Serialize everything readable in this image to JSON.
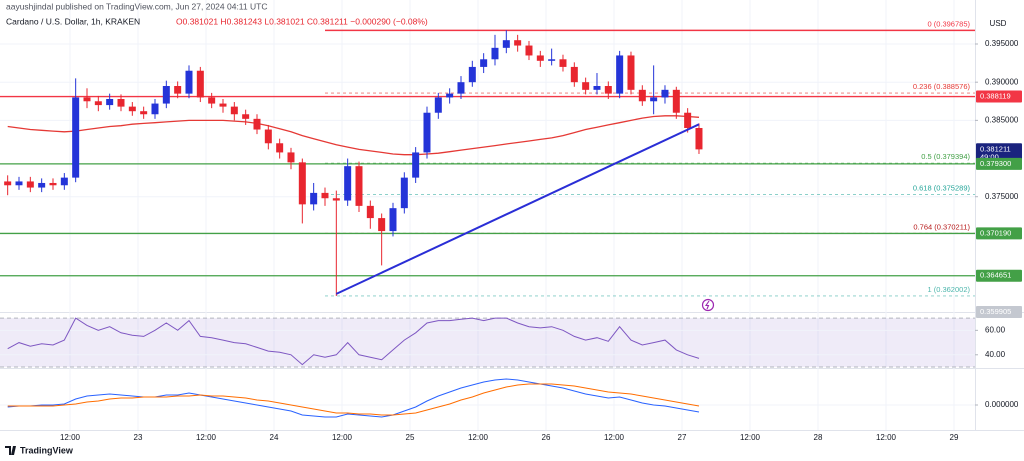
{
  "header": {
    "publisher": "aayushjindal published on TradingView.com, Jun 27, 2024 04:11 UTC",
    "symbol": "Cardano / U.S. Dollar, 1h, KRAKEN",
    "ohlc": "O0.381021 H0.381243 L0.381021 C0.381211 −0.000290 (−0.08%)"
  },
  "footer": {
    "brand": "TradingView"
  },
  "chart_data": [
    {
      "type": "candlestick",
      "currency": "USD",
      "categories": [
        null,
        null,
        null,
        null,
        null,
        null,
        "12:00",
        null,
        null,
        null,
        null,
        null,
        "23",
        null,
        null,
        null,
        null,
        null,
        "12:00",
        null,
        null,
        null,
        null,
        null,
        "24",
        null,
        null,
        null,
        null,
        null,
        "12:00",
        null,
        null,
        null,
        null,
        null,
        "25",
        null,
        null,
        null,
        null,
        null,
        "12:00",
        null,
        null,
        null,
        null,
        null,
        "26",
        null,
        null,
        null,
        null,
        null,
        "12:00",
        null,
        null,
        null,
        null,
        null,
        "27",
        null,
        null,
        null,
        null,
        null,
        "12:00",
        null,
        null,
        null,
        null,
        null,
        "28",
        null,
        null,
        null,
        null,
        null,
        "12:00",
        null,
        null,
        null,
        null,
        null,
        "29",
        null
      ],
      "open": [
        0.377,
        0.3765,
        0.377,
        0.3762,
        0.3768,
        0.3765,
        0.3775,
        0.388,
        0.3875,
        0.387,
        0.3878,
        0.3868,
        0.3862,
        0.3858,
        0.3872,
        0.3895,
        0.3885,
        0.3915,
        0.388,
        0.3872,
        0.3868,
        0.3858,
        0.3852,
        0.3838,
        0.382,
        0.3808,
        0.3795,
        0.374,
        0.3755,
        0.3748,
        0.3745,
        0.379,
        0.3738,
        0.3722,
        0.3705,
        0.3735,
        0.3775,
        0.3808,
        0.386,
        0.388,
        0.3885,
        0.39,
        0.392,
        0.393,
        0.3945,
        0.3955,
        0.3948,
        0.3935,
        0.3928,
        0.393,
        0.392,
        0.39,
        0.389,
        0.3895,
        0.3885,
        0.3935,
        0.389,
        0.3875,
        0.388,
        0.389,
        0.386,
        0.384,
        null,
        null,
        null,
        null,
        null,
        null,
        null,
        null,
        null,
        null,
        null,
        null,
        null,
        null,
        null,
        null,
        null,
        null,
        null,
        null,
        null,
        null,
        null,
        null
      ],
      "high": [
        0.3778,
        0.3776,
        0.3776,
        0.3774,
        0.3774,
        0.3781,
        0.3905,
        0.3892,
        0.3882,
        0.3885,
        0.3884,
        0.3874,
        0.3868,
        0.3878,
        0.3902,
        0.3901,
        0.3922,
        0.392,
        0.3886,
        0.3878,
        0.3874,
        0.3864,
        0.3858,
        0.3844,
        0.3826,
        0.3814,
        0.38,
        0.3768,
        0.3762,
        0.3758,
        0.38,
        0.3796,
        0.3745,
        0.3728,
        0.3742,
        0.3782,
        0.3815,
        0.3868,
        0.3886,
        0.3892,
        0.3908,
        0.3928,
        0.3938,
        0.3962,
        0.3968,
        0.3962,
        0.3954,
        0.3941,
        0.3944,
        0.3936,
        0.3926,
        0.3906,
        0.3912,
        0.3901,
        0.3941,
        0.394,
        0.3896,
        0.3922,
        0.3896,
        0.3894,
        0.3866,
        0.3846,
        null,
        null,
        null,
        null,
        null,
        null,
        null,
        null,
        null,
        null,
        null,
        null,
        null,
        null,
        null,
        null,
        null,
        null,
        null,
        null,
        null,
        null,
        null,
        null
      ],
      "low": [
        0.3752,
        0.3759,
        0.3756,
        0.3756,
        0.3759,
        0.3759,
        0.3769,
        0.3866,
        0.3862,
        0.3864,
        0.3862,
        0.3856,
        0.3852,
        0.3852,
        0.3866,
        0.3879,
        0.3879,
        0.3874,
        0.3866,
        0.386,
        0.385,
        0.3844,
        0.3832,
        0.3812,
        0.38,
        0.3786,
        0.3715,
        0.3732,
        0.3738,
        0.362,
        0.3738,
        0.373,
        0.3708,
        0.366,
        0.3698,
        0.3728,
        0.3768,
        0.38,
        0.3852,
        0.3872,
        0.3878,
        0.3894,
        0.3912,
        0.3922,
        0.3938,
        0.394,
        0.3929,
        0.392,
        0.3922,
        0.3914,
        0.3894,
        0.3884,
        0.3884,
        0.3878,
        0.3879,
        0.3884,
        0.3869,
        0.3858,
        0.3872,
        0.3852,
        0.3834,
        0.3806,
        null,
        null,
        null,
        null,
        null,
        null,
        null,
        null,
        null,
        null,
        null,
        null,
        null,
        null,
        null,
        null,
        null,
        null,
        null,
        null,
        null,
        null,
        null,
        null
      ],
      "close": [
        0.3765,
        0.377,
        0.3762,
        0.3768,
        0.3765,
        0.3775,
        0.388,
        0.3875,
        0.387,
        0.3878,
        0.3868,
        0.3862,
        0.3858,
        0.3872,
        0.3895,
        0.3885,
        0.3915,
        0.388,
        0.3872,
        0.3868,
        0.3858,
        0.3852,
        0.3838,
        0.382,
        0.3808,
        0.3795,
        0.374,
        0.3755,
        0.3748,
        0.3745,
        0.379,
        0.3738,
        0.3722,
        0.3705,
        0.3735,
        0.3775,
        0.3808,
        0.386,
        0.388,
        0.3885,
        0.39,
        0.392,
        0.393,
        0.3945,
        0.3955,
        0.3948,
        0.3935,
        0.3928,
        0.393,
        0.392,
        0.39,
        0.389,
        0.3895,
        0.3885,
        0.3935,
        0.389,
        0.3875,
        0.388,
        0.389,
        0.386,
        0.384,
        0.3812,
        null,
        null,
        null,
        null,
        null,
        null,
        null,
        null,
        null,
        null,
        null,
        null,
        null,
        null,
        null,
        null,
        null,
        null,
        null,
        null,
        null,
        null,
        null,
        null
      ],
      "up_color": "#2434d8",
      "down_color": "#e8262f",
      "ma_color": "#e53935",
      "ma_values": [
        0.3842,
        0.384,
        0.3838,
        0.3837,
        0.3836,
        0.3835,
        0.3836,
        0.3838,
        0.384,
        0.3842,
        0.3843,
        0.3845,
        0.3846,
        0.3847,
        0.3848,
        0.3849,
        0.385,
        0.385,
        0.385,
        0.385,
        0.3849,
        0.3848,
        0.3846,
        0.3843,
        0.3839,
        0.3835,
        0.383,
        0.3826,
        0.3822,
        0.3818,
        0.3815,
        0.3812,
        0.381,
        0.3808,
        0.3806,
        0.3805,
        0.3805,
        0.3806,
        0.3807,
        0.3809,
        0.3811,
        0.3813,
        0.3815,
        0.3817,
        0.3819,
        0.3821,
        0.3823,
        0.3825,
        0.3827,
        0.383,
        0.3834,
        0.3838,
        0.3841,
        0.3844,
        0.3847,
        0.385,
        0.3853,
        0.3855,
        0.3856,
        0.3856,
        0.3855,
        0.3854,
        null,
        null,
        null,
        null,
        null,
        null,
        null,
        null,
        null,
        null,
        null,
        null,
        null,
        null,
        null,
        null,
        null,
        null,
        null,
        null,
        null,
        null,
        null,
        null
      ],
      "ylim": [
        0.3599,
        0.3988
      ],
      "yticks": [
        {
          "value": 0.395,
          "label": "0.395000"
        },
        {
          "value": 0.39,
          "label": "0.390000"
        },
        {
          "value": 0.385,
          "label": "0.385000"
        },
        {
          "value": 0.375,
          "label": "0.375000"
        }
      ],
      "grid": true,
      "price_tags": [
        {
          "value": 0.388119,
          "label": "0.388119",
          "color": "#f23645",
          "line": true
        },
        {
          "value": 0.381211,
          "label": "0.381211",
          "sub": "49:00",
          "color": "#1a237e",
          "line": false
        },
        {
          "value": 0.3793,
          "label": "0.379300",
          "color": "#43a047",
          "line": true
        },
        {
          "value": 0.37019,
          "label": "0.370190",
          "color": "#43a047",
          "line": true
        },
        {
          "value": 0.364651,
          "label": "0.364651",
          "color": "#43a047",
          "line": true
        },
        {
          "value": 0.359905,
          "label": "0.359905",
          "color": "#c4c8d0",
          "line": false
        }
      ],
      "fib_levels": [
        {
          "value": 0.396785,
          "label": "0 (0.396785)",
          "color": "#f23645"
        },
        {
          "value": 0.388576,
          "label": "0.236 (0.388576)",
          "color": "#e53935"
        },
        {
          "value": 0.379394,
          "label": "0.5 (0.379394)",
          "color": "#43a047"
        },
        {
          "value": 0.375289,
          "label": "0.618 (0.375289)",
          "color": "#26a69a"
        },
        {
          "value": 0.370211,
          "label": "0.764 (0.370211)",
          "color": "#b71c1c"
        },
        {
          "value": 0.362002,
          "label": "1 (0.362002)",
          "color": "#4db6ac"
        }
      ],
      "trend_line": {
        "x": [
          29,
          61
        ],
        "y": [
          0.36227,
          0.38448
        ],
        "color": "#2a2ed6"
      }
    },
    {
      "type": "line",
      "color": "#7e57c2",
      "values": [
        45,
        50,
        47,
        49,
        48,
        52,
        70,
        64,
        60,
        63,
        58,
        56,
        55,
        60,
        66,
        60,
        68,
        55,
        54,
        52,
        50,
        49,
        46,
        43,
        42,
        40,
        32,
        40,
        38,
        40,
        50,
        40,
        38,
        36,
        44,
        52,
        58,
        66,
        68,
        68,
        69,
        70,
        68,
        70,
        70,
        66,
        63,
        62,
        63,
        60,
        55,
        52,
        54,
        51,
        63,
        52,
        48,
        50,
        52,
        44,
        40,
        37,
        null,
        null,
        null,
        null,
        null,
        null,
        null,
        null,
        null,
        null,
        null,
        null,
        null,
        null,
        null,
        null,
        null,
        null,
        null,
        null,
        null,
        null,
        null,
        null
      ],
      "ylim": [
        30,
        75
      ],
      "yticks": [
        {
          "value": 60,
          "label": "60.00"
        },
        {
          "value": 40,
          "label": "40.00"
        }
      ],
      "band": [
        30,
        70
      ],
      "band_color": "#7e57c2"
    },
    {
      "type": "line",
      "series": [
        {
          "color": "#2962ff",
          "values": [
            -0.0002,
            -0.0001,
            -0.0001,
            0.0,
            0.0,
            0.0001,
            0.0006,
            0.0009,
            0.001,
            0.0011,
            0.001,
            0.0009,
            0.0008,
            0.0008,
            0.001,
            0.001,
            0.0012,
            0.001,
            0.0008,
            0.0006,
            0.0004,
            0.0002,
            0.0,
            -0.0002,
            -0.0004,
            -0.0006,
            -0.001,
            -0.0011,
            -0.0012,
            -0.0012,
            -0.0009,
            -0.001,
            -0.0011,
            -0.0012,
            -0.001,
            -0.0006,
            -0.0002,
            0.0004,
            0.0009,
            0.0013,
            0.0017,
            0.002,
            0.0023,
            0.0025,
            0.0026,
            0.0025,
            0.0023,
            0.0021,
            0.0019,
            0.0017,
            0.0014,
            0.0011,
            0.0009,
            0.0007,
            0.0008,
            0.0005,
            0.0002,
            0.0,
            -0.0001,
            -0.0003,
            -0.0005,
            -0.0007,
            null,
            null,
            null,
            null,
            null,
            null,
            null,
            null,
            null,
            null,
            null,
            null,
            null,
            null,
            null,
            null,
            null,
            null,
            null,
            null,
            null,
            null,
            null,
            null
          ]
        },
        {
          "color": "#ff6d00",
          "values": [
            -0.0001,
            -0.0001,
            -0.0001,
            -0.0001,
            -0.0001,
            0.0,
            0.0001,
            0.0003,
            0.0004,
            0.0006,
            0.0007,
            0.0007,
            0.0008,
            0.0008,
            0.0008,
            0.0009,
            0.0009,
            0.001,
            0.0009,
            0.0009,
            0.0008,
            0.0007,
            0.0005,
            0.0004,
            0.0002,
            0.0,
            -0.0002,
            -0.0004,
            -0.0006,
            -0.0008,
            -0.0008,
            -0.0009,
            -0.0009,
            -0.001,
            -0.001,
            -0.0009,
            -0.0008,
            -0.0005,
            -0.0002,
            0.0001,
            0.0005,
            0.0008,
            0.0012,
            0.0015,
            0.0018,
            0.002,
            0.0021,
            0.0021,
            0.0021,
            0.002,
            0.0019,
            0.0017,
            0.0015,
            0.0013,
            0.0012,
            0.0011,
            0.0009,
            0.0007,
            0.0005,
            0.0003,
            0.0001,
            -0.0001,
            null,
            null,
            null,
            null,
            null,
            null,
            null,
            null,
            null,
            null,
            null,
            null,
            null,
            null,
            null,
            null,
            null,
            null,
            null,
            null,
            null,
            null,
            null,
            null
          ]
        }
      ],
      "ylim": [
        -0.0025,
        0.0035
      ],
      "yticks": [
        {
          "value": 0,
          "label": "0.000000"
        }
      ]
    }
  ]
}
